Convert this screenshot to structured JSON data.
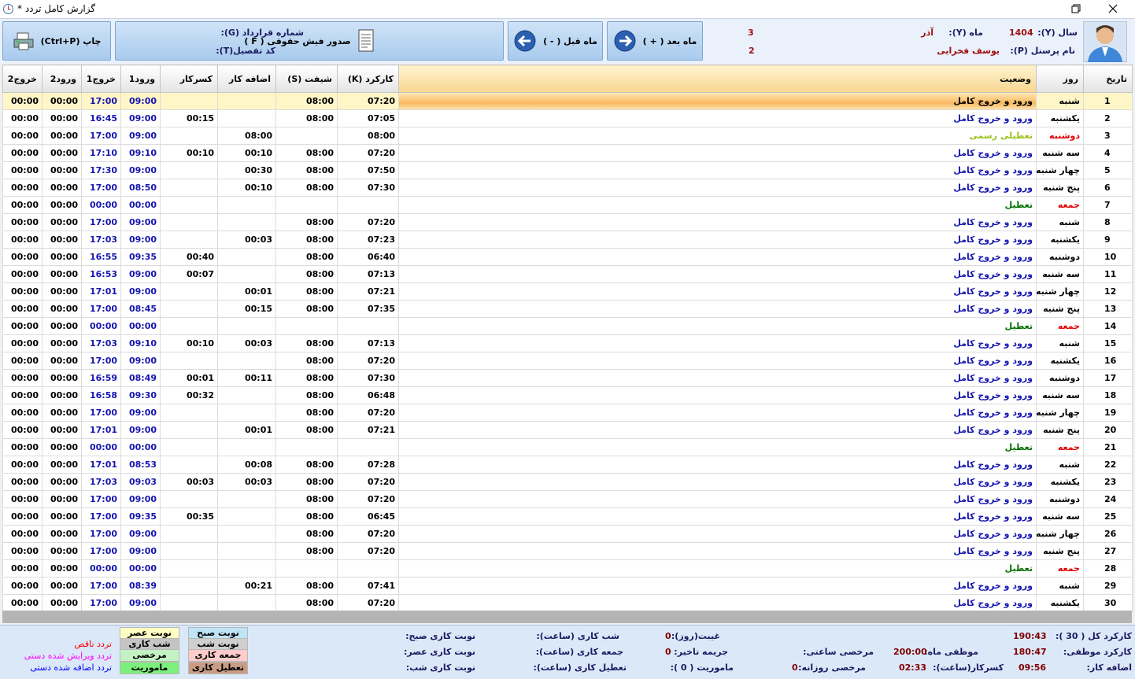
{
  "window": {
    "title": "گزارش کامل تردد *"
  },
  "toolbar": {
    "buttons": [
      "چاپ (Ctrl+P)",
      "صدور فیش حقوقی ( F )",
      "ماه قبل ( - )",
      "ماه بعد ( + )"
    ],
    "info": {
      "year_label": "سال (Y):",
      "year": "1404",
      "month_label": "ماه (Y):",
      "month": "آذر",
      "contract_label": "شماره قرارداد (G):",
      "contract": "3",
      "name_label": "نام پرسنل (P):",
      "name": "یوسف فخرایی",
      "code_label": "کد تفصیل(T):",
      "code": "2"
    }
  },
  "table": {
    "headers": [
      "تاریخ",
      "روز",
      "وضعیت",
      "کارکرد (K)",
      "شیفت (S)",
      "اضافه کار",
      "کسرکار",
      "ورود1",
      "خروج1",
      "ورود2",
      "خروج2"
    ],
    "rows": [
      {
        "cells": [
          "1",
          "شنبه",
          "ورود و خروج کامل",
          "07:20",
          "08:00",
          null,
          null,
          "09:00",
          "17:00",
          "00:00",
          "00:00"
        ],
        "day_color": "#000000",
        "status_color": "#000000"
      },
      {
        "cells": [
          "2",
          "یکشنبه",
          "ورود و خروج کامل",
          "07:05",
          "08:00",
          null,
          "00:15",
          "09:00",
          "16:45",
          "00:00",
          "00:00"
        ],
        "day_color": "#000000",
        "status_color": "#1515b0"
      },
      {
        "cells": [
          "3",
          "دوشنبه",
          "تعطیلی رسمی",
          "08:00",
          null,
          "08:00",
          null,
          "09:00",
          "17:00",
          "00:00",
          "00:00"
        ],
        "day_color": "#e00000",
        "status_color": "#9cc21a"
      },
      {
        "cells": [
          "4",
          "سه شنبه",
          "ورود و خروج کامل",
          "07:20",
          "08:00",
          "00:10",
          "00:10",
          "09:10",
          "17:10",
          "00:00",
          "00:00"
        ],
        "day_color": "#000000",
        "status_color": "#1515b0"
      },
      {
        "cells": [
          "5",
          "چهار شنبه",
          "ورود و خروج کامل",
          "07:50",
          "08:00",
          "00:30",
          null,
          "09:00",
          "17:30",
          "00:00",
          "00:00"
        ],
        "day_color": "#000000",
        "status_color": "#1515b0"
      },
      {
        "cells": [
          "6",
          "پنج شنبه",
          "ورود و خروج کامل",
          "07:30",
          "08:00",
          "00:10",
          null,
          "08:50",
          "17:00",
          "00:00",
          "00:00"
        ],
        "day_color": "#000000",
        "status_color": "#1515b0"
      },
      {
        "cells": [
          "7",
          "جمعه",
          "تعطیل",
          null,
          null,
          null,
          null,
          "00:00",
          "00:00",
          "00:00",
          "00:00"
        ],
        "day_color": "#e00000",
        "status_color": "#007000"
      },
      {
        "cells": [
          "8",
          "شنبه",
          "ورود و خروج کامل",
          "07:20",
          "08:00",
          null,
          null,
          "09:00",
          "17:00",
          "00:00",
          "00:00"
        ],
        "day_color": "#000000",
        "status_color": "#1515b0"
      },
      {
        "cells": [
          "9",
          "یکشنبه",
          "ورود و خروج کامل",
          "07:23",
          "08:00",
          "00:03",
          null,
          "09:00",
          "17:03",
          "00:00",
          "00:00"
        ],
        "day_color": "#000000",
        "status_color": "#1515b0"
      },
      {
        "cells": [
          "10",
          "دوشنبه",
          "ورود و خروج کامل",
          "06:40",
          "08:00",
          null,
          "00:40",
          "09:35",
          "16:55",
          "00:00",
          "00:00"
        ],
        "day_color": "#000000",
        "status_color": "#1515b0"
      },
      {
        "cells": [
          "11",
          "سه شنبه",
          "ورود و خروج کامل",
          "07:13",
          "08:00",
          null,
          "00:07",
          "09:00",
          "16:53",
          "00:00",
          "00:00"
        ],
        "day_color": "#000000",
        "status_color": "#1515b0"
      },
      {
        "cells": [
          "12",
          "چهار شنبه",
          "ورود و خروج کامل",
          "07:21",
          "08:00",
          "00:01",
          null,
          "09:00",
          "17:01",
          "00:00",
          "00:00"
        ],
        "day_color": "#000000",
        "status_color": "#1515b0"
      },
      {
        "cells": [
          "13",
          "پنج شنبه",
          "ورود و خروج کامل",
          "07:35",
          "08:00",
          "00:15",
          null,
          "08:45",
          "17:00",
          "00:00",
          "00:00"
        ],
        "day_color": "#000000",
        "status_color": "#1515b0"
      },
      {
        "cells": [
          "14",
          "جمعه",
          "تعطیل",
          null,
          null,
          null,
          null,
          "00:00",
          "00:00",
          "00:00",
          "00:00"
        ],
        "day_color": "#e00000",
        "status_color": "#007000"
      },
      {
        "cells": [
          "15",
          "شنبه",
          "ورود و خروج کامل",
          "07:13",
          "08:00",
          "00:03",
          "00:10",
          "09:10",
          "17:03",
          "00:00",
          "00:00"
        ],
        "day_color": "#000000",
        "status_color": "#1515b0"
      },
      {
        "cells": [
          "16",
          "یکشنبه",
          "ورود و خروج کامل",
          "07:20",
          "08:00",
          null,
          null,
          "09:00",
          "17:00",
          "00:00",
          "00:00"
        ],
        "day_color": "#000000",
        "status_color": "#1515b0"
      },
      {
        "cells": [
          "17",
          "دوشنبه",
          "ورود و خروج کامل",
          "07:30",
          "08:00",
          "00:11",
          "00:01",
          "08:49",
          "16:59",
          "00:00",
          "00:00"
        ],
        "day_color": "#000000",
        "status_color": "#1515b0"
      },
      {
        "cells": [
          "18",
          "سه شنبه",
          "ورود و خروج کامل",
          "06:48",
          "08:00",
          null,
          "00:32",
          "09:30",
          "16:58",
          "00:00",
          "00:00"
        ],
        "day_color": "#000000",
        "status_color": "#1515b0"
      },
      {
        "cells": [
          "19",
          "چهار شنبه",
          "ورود و خروج کامل",
          "07:20",
          "08:00",
          null,
          null,
          "09:00",
          "17:00",
          "00:00",
          "00:00"
        ],
        "day_color": "#000000",
        "status_color": "#1515b0"
      },
      {
        "cells": [
          "20",
          "پنج شنبه",
          "ورود و خروج کامل",
          "07:21",
          "08:00",
          "00:01",
          null,
          "09:00",
          "17:01",
          "00:00",
          "00:00"
        ],
        "day_color": "#000000",
        "status_color": "#1515b0"
      },
      {
        "cells": [
          "21",
          "جمعه",
          "تعطیل",
          null,
          null,
          null,
          null,
          "00:00",
          "00:00",
          "00:00",
          "00:00"
        ],
        "day_color": "#e00000",
        "status_color": "#007000"
      },
      {
        "cells": [
          "22",
          "شنبه",
          "ورود و خروج کامل",
          "07:28",
          "08:00",
          "00:08",
          null,
          "08:53",
          "17:01",
          "00:00",
          "00:00"
        ],
        "day_color": "#000000",
        "status_color": "#1515b0"
      },
      {
        "cells": [
          "23",
          "یکشنبه",
          "ورود و خروج کامل",
          "07:20",
          "08:00",
          "00:03",
          "00:03",
          "09:03",
          "17:03",
          "00:00",
          "00:00"
        ],
        "day_color": "#000000",
        "status_color": "#1515b0"
      },
      {
        "cells": [
          "24",
          "دوشنبه",
          "ورود و خروج کامل",
          "07:20",
          "08:00",
          null,
          null,
          "09:00",
          "17:00",
          "00:00",
          "00:00"
        ],
        "day_color": "#000000",
        "status_color": "#1515b0"
      },
      {
        "cells": [
          "25",
          "سه شنبه",
          "ورود و خروج کامل",
          "06:45",
          "08:00",
          null,
          "00:35",
          "09:35",
          "17:00",
          "00:00",
          "00:00"
        ],
        "day_color": "#000000",
        "status_color": "#1515b0"
      },
      {
        "cells": [
          "26",
          "چهار شنبه",
          "ورود و خروج کامل",
          "07:20",
          "08:00",
          null,
          null,
          "09:00",
          "17:00",
          "00:00",
          "00:00"
        ],
        "day_color": "#000000",
        "status_color": "#1515b0"
      },
      {
        "cells": [
          "27",
          "پنج شنبه",
          "ورود و خروج کامل",
          "07:20",
          "08:00",
          null,
          null,
          "09:00",
          "17:00",
          "00:00",
          "00:00"
        ],
        "day_color": "#000000",
        "status_color": "#1515b0"
      },
      {
        "cells": [
          "28",
          "جمعه",
          "تعطیل",
          null,
          null,
          null,
          null,
          "00:00",
          "00:00",
          "00:00",
          "00:00"
        ],
        "day_color": "#e00000",
        "status_color": "#007000"
      },
      {
        "cells": [
          "29",
          "شنبه",
          "ورود و خروج کامل",
          "07:41",
          "08:00",
          "00:21",
          null,
          "08:39",
          "17:00",
          "00:00",
          "00:00"
        ],
        "day_color": "#000000",
        "status_color": "#1515b0"
      },
      {
        "cells": [
          "30",
          "یکشنبه",
          "ورود و خروج کامل",
          "07:20",
          "08:00",
          null,
          null,
          "09:00",
          "17:00",
          "00:00",
          "00:00"
        ],
        "day_color": "#000000",
        "status_color": "#1515b0"
      }
    ]
  },
  "legend": {
    "shifts": [
      {
        "label": "نوبت صبح",
        "color": "#bfe4f6"
      },
      {
        "label": "نوبت عصر",
        "color": "#ffffc4"
      },
      {
        "label": "نوبت شب",
        "color": "#cfcfcf"
      },
      {
        "label": "شب کاری",
        "color": "#c4c4c4"
      },
      {
        "label": "جمعه کاری",
        "color": "#ffcccc"
      },
      {
        "label": "مرخصی",
        "color": "#c4f2c4"
      },
      {
        "label": "تعطیل کاری",
        "color": "#c99c84"
      },
      {
        "label": "ماموریت",
        "color": "#7cf07c"
      }
    ],
    "flags": [
      {
        "label": "تردد ناقص",
        "color": "#ff0000"
      },
      {
        "label": "تردد ویرایش شده دستی",
        "color": "#ff00ff"
      },
      {
        "label": "تردد اضافه شده دستی",
        "color": "#0000ff"
      }
    ]
  },
  "summary": [
    {
      "label": "کارکرد کل ( 30 ):",
      "value": "190:43"
    },
    {
      "label": "کارکرد موظفی:",
      "value": "180:47"
    },
    {
      "label": "اضافه کار:",
      "value": "09:56"
    },
    {
      "label": "موظفی ماه:",
      "value": "200:00"
    },
    {
      "label": "کسرکار(ساعت):",
      "value": "02:33"
    },
    {
      "label": "مرخصی ساعتی:"
    },
    {
      "label": "مرخصی روزانه:",
      "value": "0"
    },
    {
      "label": "غیبت(روز):",
      "value": "0"
    },
    {
      "label": "جریمه تاخیر:",
      "value": "0"
    },
    {
      "label": "ماموریت ( 0 ):"
    },
    {
      "label": "شب کاری (ساعت):"
    },
    {
      "label": "جمعه کاری (ساعت):"
    },
    {
      "label": "تعطیل کاری (ساعت):"
    },
    {
      "label": "نوبت کاری صبح:"
    },
    {
      "label": "نوبت کاری عصر:"
    },
    {
      "label": "نوبت کاری شب:"
    }
  ]
}
